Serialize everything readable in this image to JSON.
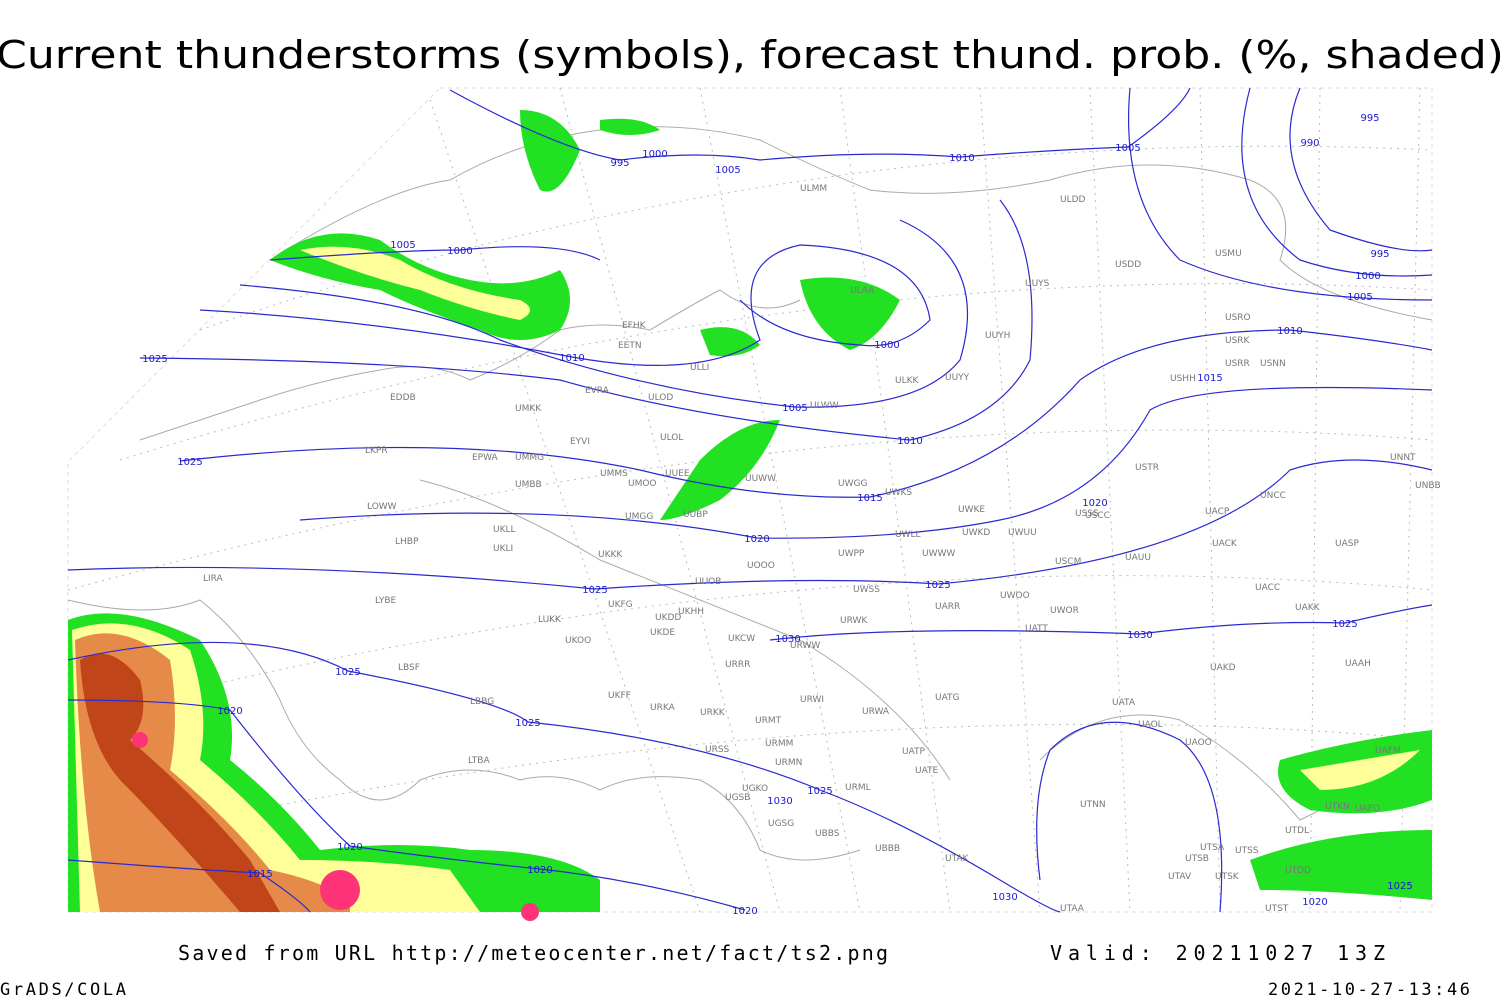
{
  "title": "Current thunderstorms (symbols), forecast thund. prob. (%, shaded)",
  "footer": {
    "source": "Saved from URL http://meteocenter.net/fact/ts2.png",
    "valid": "Valid: 20211027 13Z",
    "software": "GrADS/COLA",
    "timestamp": "2021-10-27-13:46"
  },
  "isobar_labels": [
    995,
    1000,
    1005,
    1010,
    1005,
    995,
    990,
    995,
    1000,
    1005,
    1010,
    1015,
    1005,
    1000,
    1010,
    1000,
    1005,
    1010,
    1015,
    1020,
    1020,
    1025,
    1025,
    1025,
    1025,
    1030,
    1030,
    1025,
    1025,
    1020,
    1025,
    1025,
    1030,
    1020,
    1020,
    1015,
    1020,
    1030,
    1025,
    1020
  ],
  "stations": [
    "ULMM",
    "ULDD",
    "USDD",
    "USMU",
    "UUYS",
    "USRO",
    "USRK",
    "USRR",
    "USNN",
    "USHH",
    "UUYH",
    "ULKK",
    "UUYY",
    "ULAA",
    "EFHK",
    "EETN",
    "EVRA",
    "ULOD",
    "ULLI",
    "ULWW",
    "EDDB",
    "UMKK",
    "EYVI",
    "ULOL",
    "EPWA",
    "UMMG",
    "LKPR",
    "UMMS",
    "UMOO",
    "UUEE",
    "UUWW",
    "UWGG",
    "UWKS",
    "UWKE",
    "USSS",
    "USTR",
    "UNNT",
    "UNBB",
    "UNCC",
    "USCC",
    "UACP",
    "UMBB",
    "LOWW",
    "UMGG",
    "UUBP",
    "UWKD",
    "UWUU",
    "UWLL",
    "UKLL",
    "UKLI",
    "LHBP",
    "UKKK",
    "UWPP",
    "UWWW",
    "USCM",
    "UAUU",
    "UACK",
    "UASP",
    "LIRA",
    "UOOO",
    "UUOB",
    "UACC",
    "LYBE",
    "UWSS",
    "UARR",
    "UWOO",
    "UWOR",
    "UAKK",
    "UKFG",
    "UKDD",
    "UKHH",
    "LUKK",
    "URWK",
    "UKOO",
    "UKDE",
    "UKCW",
    "URWW",
    "UATT",
    "LBSF",
    "URRR",
    "UAKD",
    "UAAH",
    "LBBG",
    "UKFF",
    "UATG",
    "URWI",
    "UATA",
    "URKA",
    "URKK",
    "URMT",
    "URWA",
    "UAOL",
    "UAOO",
    "URSS",
    "URMM",
    "UATP",
    "URMN",
    "LTBA",
    "UATE",
    "UGKO",
    "UGSB",
    "URML",
    "UTNN",
    "UGSG",
    "UBBS",
    "UBBB",
    "UTAK",
    "UTSA",
    "UTSS",
    "UTSB",
    "UTDL",
    "UTKN",
    "UAFO",
    "UTAV",
    "UTSK",
    "UTDD",
    "UTST",
    "UTAA",
    "UAFM"
  ]
}
